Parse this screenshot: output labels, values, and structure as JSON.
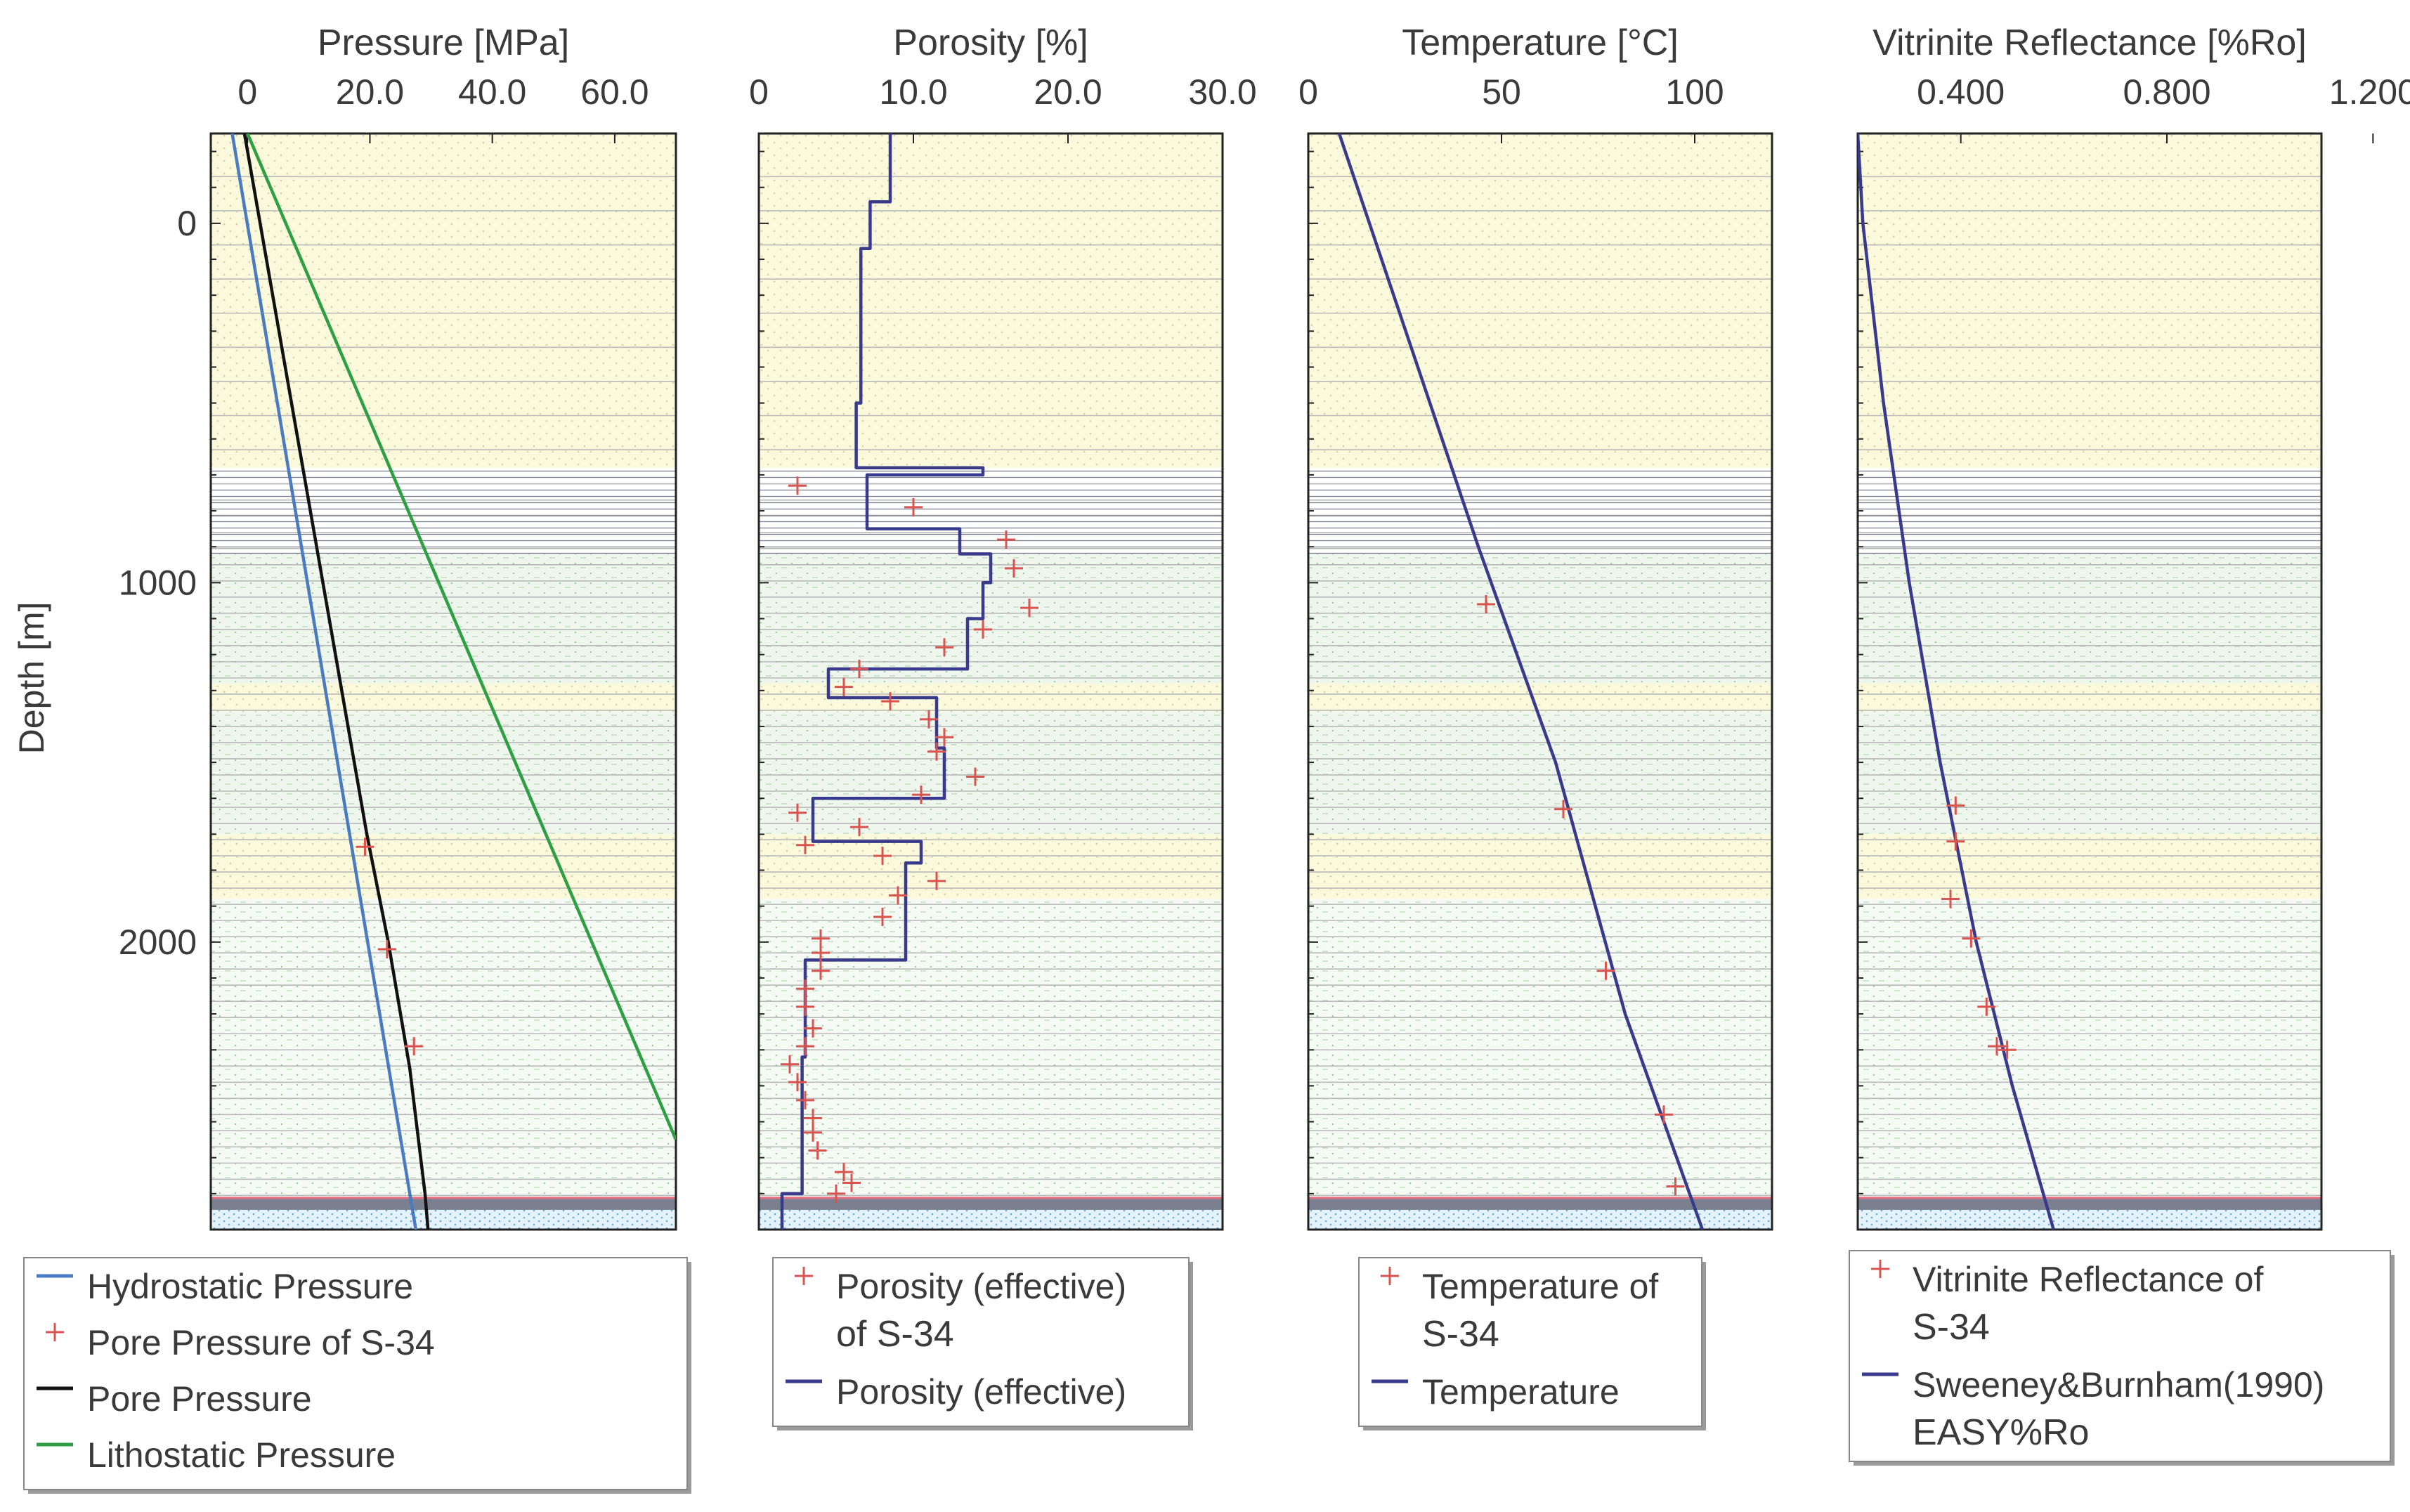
{
  "depth_axis": {
    "label": "Depth [m]",
    "range": [
      -250,
      2800
    ],
    "ticks": [
      0,
      1000,
      2000
    ],
    "tick_labels": [
      "0",
      "1000",
      "2000"
    ]
  },
  "layers": [
    {
      "from": -250,
      "to": 680,
      "fill": "#fbf9dc",
      "pattern": "sand"
    },
    {
      "from": 680,
      "to": 920,
      "fill": "#ffffff",
      "pattern": "dense"
    },
    {
      "from": 920,
      "to": 1280,
      "fill": "#eef6ee",
      "pattern": "silt"
    },
    {
      "from": 1280,
      "to": 1360,
      "fill": "#fbf9dc",
      "pattern": "sand"
    },
    {
      "from": 1360,
      "to": 1700,
      "fill": "#eef6ee",
      "pattern": "silt"
    },
    {
      "from": 1700,
      "to": 1880,
      "fill": "#fbf9dc",
      "pattern": "sand"
    },
    {
      "from": 1880,
      "to": 2720,
      "fill": "#f5faf5",
      "pattern": "silt"
    },
    {
      "from": 2720,
      "to": 2745,
      "fill": "#8a8fa0",
      "pattern": "none"
    },
    {
      "from": 2745,
      "to": 2800,
      "fill": "#e3f2fb",
      "pattern": "blue"
    }
  ],
  "chart_data": [
    {
      "type": "line",
      "title": "Pressure [MPa]",
      "xlim": [
        -6,
        70
      ],
      "ylim": [
        -250,
        2800
      ],
      "ylabel": "Depth [m]",
      "x_ticks": [
        0,
        20,
        40,
        60
      ],
      "x_tick_labels": [
        "0",
        "20.0",
        "40.0",
        "60.0"
      ],
      "series": [
        {
          "name": "Hydrostatic Pressure",
          "color": "#4a7ac0",
          "depth": [
            -250,
            2800
          ],
          "values": [
            -2.5,
            27.5
          ]
        },
        {
          "name": "Pore Pressure",
          "color": "#111111",
          "depth": [
            -250,
            1700,
            2000,
            2350,
            2700,
            2800
          ],
          "values": [
            -0.5,
            19.5,
            23.0,
            26.5,
            29.0,
            29.5
          ]
        },
        {
          "name": "Lithostatic Pressure",
          "color": "#2ea043",
          "depth": [
            -250,
            2550
          ],
          "values": [
            0,
            70
          ]
        },
        {
          "name": "Pore Pressure of S-34",
          "color": "#d9534f",
          "marker": "plus",
          "depth": [
            1735,
            2020,
            2290
          ],
          "values": [
            19.2,
            22.8,
            27.2
          ]
        }
      ],
      "legend": {
        "placement": "bottom",
        "items": [
          {
            "label": "Hydrostatic Pressure",
            "kind": "line",
            "color": "#4a7ac0"
          },
          {
            "label": "Pore Pressure of S-34",
            "kind": "marker",
            "color": "#d9534f"
          },
          {
            "label": "Pore Pressure",
            "kind": "line",
            "color": "#111111"
          },
          {
            "label": "Lithostatic Pressure",
            "kind": "line",
            "color": "#2ea043"
          }
        ]
      }
    },
    {
      "type": "line",
      "title": "Porosity [%]",
      "xlim": [
        0,
        30
      ],
      "ylim": [
        -250,
        2800
      ],
      "x_ticks": [
        0,
        10,
        20,
        30
      ],
      "x_tick_labels": [
        "0",
        "10.0",
        "20.0",
        "30.0"
      ],
      "series": [
        {
          "name": "Porosity (effective)",
          "color": "#3a3a8c",
          "depth": [
            -250,
            -60,
            -60,
            70,
            70,
            500,
            500,
            680,
            680,
            700,
            700,
            850,
            850,
            920,
            920,
            1000,
            1000,
            1100,
            1100,
            1240,
            1240,
            1320,
            1320,
            1460,
            1460,
            1600,
            1600,
            1720,
            1720,
            1780,
            1780,
            2050,
            2050,
            2320,
            2320,
            2700,
            2700,
            2800
          ],
          "values": [
            8.5,
            8.5,
            7.2,
            7.2,
            6.6,
            6.6,
            6.3,
            6.3,
            14.5,
            14.5,
            7.0,
            7.0,
            13.0,
            13.0,
            15.0,
            15.0,
            14.5,
            14.5,
            13.5,
            13.5,
            4.5,
            4.5,
            11.5,
            11.5,
            12.0,
            12.0,
            3.5,
            3.5,
            10.5,
            10.5,
            9.5,
            9.5,
            3.0,
            3.0,
            2.8,
            2.8,
            1.5,
            1.5
          ]
        },
        {
          "name": "Porosity (effective) of S-34",
          "color": "#d9534f",
          "marker": "plus",
          "depth": [
            730,
            790,
            880,
            960,
            1070,
            1130,
            1180,
            1240,
            1290,
            1330,
            1380,
            1430,
            1470,
            1540,
            1590,
            1640,
            1680,
            1730,
            1760,
            1830,
            1870,
            1930,
            1990,
            2030,
            2080,
            2130,
            2180,
            2240,
            2290,
            2340,
            2390,
            2440,
            2490,
            2530,
            2580,
            2640,
            2670,
            2700
          ],
          "values": [
            2.5,
            10.0,
            16.0,
            16.5,
            17.5,
            14.5,
            12.0,
            6.5,
            5.5,
            8.5,
            11.0,
            12.0,
            11.5,
            14.0,
            10.5,
            2.5,
            6.5,
            3.0,
            8.0,
            11.5,
            9.0,
            8.0,
            4.0,
            4.0,
            4.0,
            3.0,
            3.0,
            3.5,
            3.0,
            2.0,
            2.5,
            3.0,
            3.5,
            3.5,
            3.8,
            5.5,
            6.0,
            5.0
          ]
        }
      ],
      "legend": {
        "placement": "bottom",
        "items": [
          {
            "label": "Porosity (effective)",
            "label2": "of S-34",
            "kind": "marker",
            "color": "#d9534f"
          },
          {
            "label": "Porosity (effective)",
            "label2": "",
            "kind": "line",
            "color": "#3a3a8c"
          }
        ]
      }
    },
    {
      "type": "line",
      "title": "Temperature [°C]",
      "xlim": [
        0,
        120
      ],
      "ylim": [
        -250,
        2800
      ],
      "x_ticks": [
        0,
        50,
        100
      ],
      "x_tick_labels": [
        "0",
        "50",
        "100"
      ],
      "series": [
        {
          "name": "Temperature",
          "color": "#3a3a8c",
          "depth": [
            -250,
            900,
            1500,
            2200,
            2800
          ],
          "values": [
            8,
            44,
            64,
            82,
            102
          ]
        },
        {
          "name": "Temperature of S-34",
          "color": "#d9534f",
          "marker": "plus",
          "depth": [
            1060,
            1630,
            2080,
            2480,
            2680
          ],
          "values": [
            46,
            66,
            77,
            92,
            95
          ]
        }
      ],
      "legend": {
        "placement": "bottom",
        "items": [
          {
            "label": "Temperature of",
            "label2": "S-34",
            "kind": "marker",
            "color": "#d9534f"
          },
          {
            "label": "Temperature",
            "label2": "",
            "kind": "line",
            "color": "#3a3a8c"
          }
        ]
      }
    },
    {
      "type": "line",
      "title": "Vitrinite Reflectance [%Ro]",
      "xlim": [
        0.2,
        1.1
      ],
      "ylim": [
        -250,
        2800
      ],
      "x_ticks": [
        0.4,
        0.8,
        1.2
      ],
      "x_tick_labels": [
        "0.400",
        "0.800",
        "1.200"
      ],
      "series": [
        {
          "name": "Sweeney&Burnham(1990) EASY%Ro",
          "color": "#3a3a8c",
          "depth": [
            -250,
            0,
            500,
            1000,
            1500,
            2000,
            2400,
            2800
          ],
          "values": [
            0.2,
            0.21,
            0.25,
            0.3,
            0.36,
            0.43,
            0.5,
            0.58
          ]
        },
        {
          "name": "Vitrinite Reflectance of S-34",
          "color": "#d9534f",
          "marker": "plus",
          "depth": [
            1620,
            1720,
            1880,
            1990,
            2180,
            2290,
            2300
          ],
          "values": [
            0.39,
            0.39,
            0.38,
            0.42,
            0.45,
            0.47,
            0.49
          ]
        }
      ],
      "legend": {
        "placement": "bottom",
        "items": [
          {
            "label": "Vitrinite Reflectance of",
            "label2": "S-34",
            "kind": "marker",
            "color": "#d9534f"
          },
          {
            "label": "Sweeney&Burnham(1990)",
            "label2": "EASY%Ro",
            "kind": "line",
            "color": "#3a3a8c"
          }
        ]
      }
    }
  ]
}
